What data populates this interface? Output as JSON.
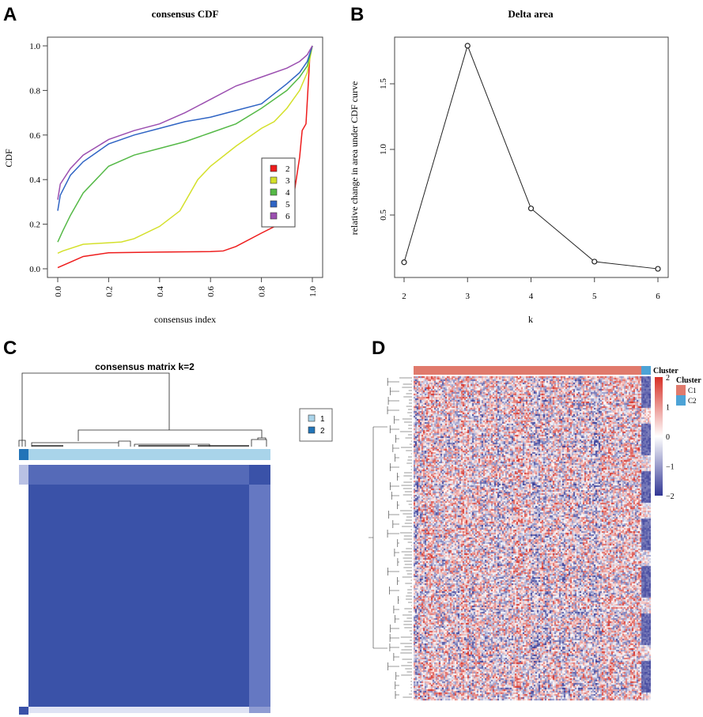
{
  "panel_labels": [
    "A",
    "B",
    "C",
    "D"
  ],
  "colors": {
    "k2": "#ee1c1c",
    "k3": "#d4e02a",
    "k4": "#55b947",
    "k5": "#2f64c4",
    "k6": "#9b4fb0",
    "matrix_blue": "#3a52a8",
    "cluster1_light": "#a9d4ea",
    "cluster2_dark": "#2274b8",
    "heat_high": "#d73027",
    "heat_low": "#313695",
    "c1": "#e07a6c",
    "c2": "#4da3d6"
  },
  "chart_data": [
    {
      "type": "line",
      "title": "consensus CDF",
      "xlabel": "consensus index",
      "ylabel": "CDF",
      "xlim": [
        0,
        1
      ],
      "ylim": [
        0,
        1
      ],
      "xticks": [
        "0.0",
        "0.2",
        "0.4",
        "0.6",
        "0.8",
        "1.0"
      ],
      "yticks": [
        "0.0",
        "0.2",
        "0.4",
        "0.6",
        "0.8",
        "1.0"
      ],
      "legend_position": "right",
      "series": [
        {
          "name": "2",
          "color": "#ee1c1c",
          "points": [
            [
              0,
              0.005
            ],
            [
              0.05,
              0.03
            ],
            [
              0.1,
              0.055
            ],
            [
              0.2,
              0.072
            ],
            [
              0.4,
              0.075
            ],
            [
              0.6,
              0.077
            ],
            [
              0.65,
              0.08
            ],
            [
              0.7,
              0.1
            ],
            [
              0.8,
              0.16
            ],
            [
              0.87,
              0.2
            ],
            [
              0.9,
              0.25
            ],
            [
              0.93,
              0.35
            ],
            [
              0.95,
              0.5
            ],
            [
              0.96,
              0.62
            ],
            [
              0.975,
              0.65
            ],
            [
              0.99,
              0.95
            ],
            [
              1,
              1
            ]
          ]
        },
        {
          "name": "3",
          "color": "#d4e02a",
          "points": [
            [
              0,
              0.07
            ],
            [
              0.02,
              0.08
            ],
            [
              0.1,
              0.11
            ],
            [
              0.25,
              0.12
            ],
            [
              0.3,
              0.135
            ],
            [
              0.4,
              0.19
            ],
            [
              0.48,
              0.26
            ],
            [
              0.55,
              0.4
            ],
            [
              0.6,
              0.46
            ],
            [
              0.7,
              0.55
            ],
            [
              0.8,
              0.63
            ],
            [
              0.85,
              0.66
            ],
            [
              0.9,
              0.72
            ],
            [
              0.95,
              0.8
            ],
            [
              0.98,
              0.88
            ],
            [
              1,
              1
            ]
          ]
        },
        {
          "name": "4",
          "color": "#55b947",
          "points": [
            [
              0,
              0.12
            ],
            [
              0.02,
              0.17
            ],
            [
              0.05,
              0.24
            ],
            [
              0.1,
              0.34
            ],
            [
              0.15,
              0.4
            ],
            [
              0.2,
              0.46
            ],
            [
              0.3,
              0.51
            ],
            [
              0.4,
              0.54
            ],
            [
              0.5,
              0.57
            ],
            [
              0.6,
              0.61
            ],
            [
              0.7,
              0.65
            ],
            [
              0.8,
              0.72
            ],
            [
              0.9,
              0.8
            ],
            [
              0.95,
              0.86
            ],
            [
              0.98,
              0.91
            ],
            [
              1,
              1
            ]
          ]
        },
        {
          "name": "5",
          "color": "#2f64c4",
          "points": [
            [
              0,
              0.26
            ],
            [
              0.01,
              0.33
            ],
            [
              0.05,
              0.42
            ],
            [
              0.1,
              0.48
            ],
            [
              0.2,
              0.56
            ],
            [
              0.3,
              0.6
            ],
            [
              0.4,
              0.63
            ],
            [
              0.5,
              0.66
            ],
            [
              0.6,
              0.68
            ],
            [
              0.7,
              0.71
            ],
            [
              0.8,
              0.74
            ],
            [
              0.9,
              0.83
            ],
            [
              0.95,
              0.88
            ],
            [
              0.98,
              0.93
            ],
            [
              1,
              1
            ]
          ]
        },
        {
          "name": "6",
          "color": "#9b4fb0",
          "points": [
            [
              0,
              0.31
            ],
            [
              0.01,
              0.38
            ],
            [
              0.05,
              0.45
            ],
            [
              0.1,
              0.51
            ],
            [
              0.2,
              0.58
            ],
            [
              0.3,
              0.62
            ],
            [
              0.4,
              0.65
            ],
            [
              0.5,
              0.7
            ],
            [
              0.6,
              0.76
            ],
            [
              0.7,
              0.82
            ],
            [
              0.8,
              0.86
            ],
            [
              0.9,
              0.9
            ],
            [
              0.95,
              0.93
            ],
            [
              0.98,
              0.96
            ],
            [
              1,
              1
            ]
          ]
        }
      ]
    },
    {
      "type": "line",
      "title": "Delta area",
      "xlabel": "k",
      "ylabel": "relative change in area under CDF curve",
      "x": [
        2,
        3,
        4,
        5,
        6
      ],
      "values": [
        0.14,
        1.79,
        0.55,
        0.145,
        0.09
      ],
      "xticks": [
        "2",
        "3",
        "4",
        "5",
        "6"
      ],
      "yticks": [
        "0.5",
        "1.0",
        "1.5"
      ],
      "ylim": [
        0.02,
        1.85
      ]
    },
    {
      "type": "heatmap",
      "title": "consensus matrix k=2",
      "legend": [
        "1",
        "2"
      ]
    },
    {
      "type": "heatmap",
      "annotation_label": "Cluster",
      "legend_title": "Cluster",
      "legend": [
        "C1",
        "C2"
      ],
      "colorbar_ticks": [
        "2",
        "1",
        "0",
        "−1",
        "−2"
      ]
    }
  ]
}
